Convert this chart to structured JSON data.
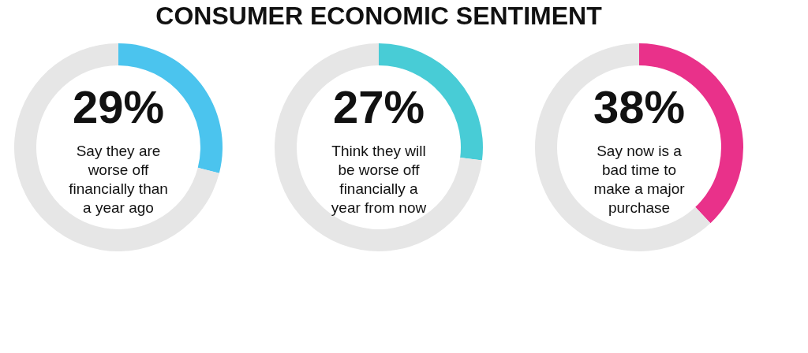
{
  "chart_data": [
    {
      "type": "donut",
      "title": "CONSUMER ECONOMIC SENTIMENT",
      "categories": [
        null,
        null
      ],
      "values": [
        29,
        71
      ],
      "colors": [
        "#4bc4ee",
        "#e6e6e6"
      ],
      "value_labels": [
        "29%",
        null
      ],
      "annotations": [
        "Say they are\nworse off\nfinancially than\na year ago"
      ]
    },
    {
      "type": "donut",
      "categories": [
        null,
        null
      ],
      "values": [
        27,
        73
      ],
      "colors": [
        "#48ccd6",
        "#e6e6e6"
      ],
      "value_labels": [
        "27%",
        null
      ],
      "annotations": [
        "Think they will\nbe worse off\nfinancially a\nyear from now"
      ]
    },
    {
      "type": "donut",
      "categories": [
        null,
        null
      ],
      "values": [
        38,
        62
      ],
      "colors": [
        "#e9318a",
        "#e6e6e6"
      ],
      "value_labels": [
        "38%",
        null
      ],
      "annotations": [
        "Say now is a\nbad time to\nmake a major\npurchase"
      ]
    }
  ]
}
